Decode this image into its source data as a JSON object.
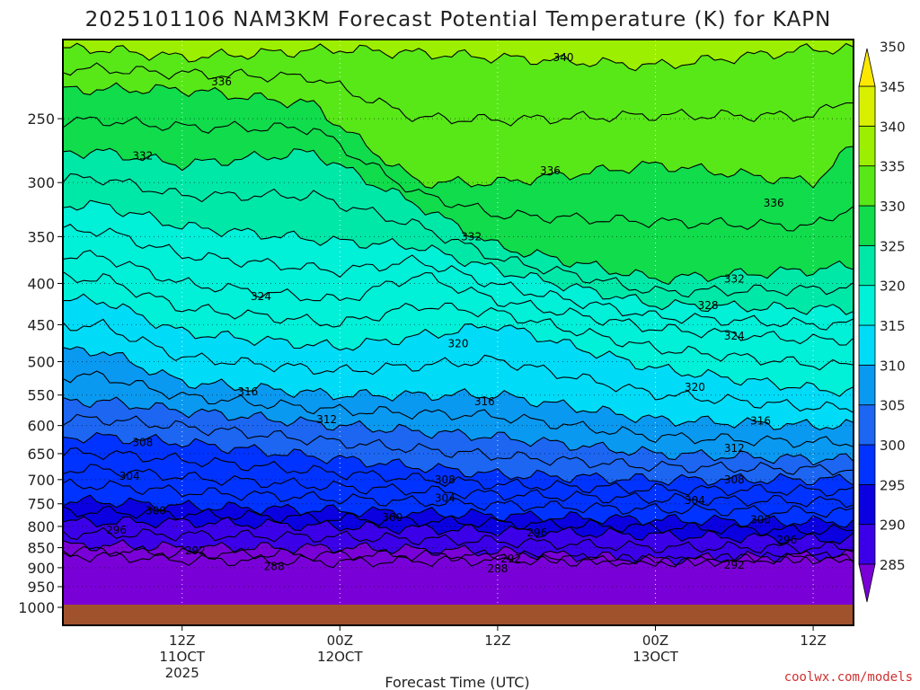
{
  "chart_data": {
    "type": "heatmap",
    "title": "2025101106 NAM3KM Forecast Potential Temperature (K) for KAPN",
    "xlabel": "Forecast Time (UTC)",
    "ylabel": "",
    "x_range_hours": [
      -3,
      57
    ],
    "x_ticks": [
      {
        "hour": 6,
        "lines": [
          "12Z",
          "11OCT",
          "2025"
        ]
      },
      {
        "hour": 18,
        "lines": [
          "00Z",
          "12OCT"
        ]
      },
      {
        "hour": 30,
        "lines": [
          "12Z"
        ]
      },
      {
        "hour": 42,
        "lines": [
          "00Z",
          "13OCT"
        ]
      },
      {
        "hour": 54,
        "lines": [
          "12Z"
        ]
      }
    ],
    "y_scale": "log-pressure",
    "y_range_hpa": [
      1000,
      200
    ],
    "y_ticks": [
      250,
      300,
      350,
      400,
      450,
      500,
      550,
      600,
      650,
      700,
      750,
      800,
      850,
      900,
      950,
      1000
    ],
    "colorbar": {
      "levels": [
        285,
        290,
        295,
        300,
        305,
        310,
        315,
        320,
        325,
        330,
        335,
        340,
        345,
        350
      ],
      "colors": [
        "#7a00d8",
        "#3b00e8",
        "#0a00e0",
        "#0033ff",
        "#1c66f2",
        "#0a99f0",
        "#00dcf8",
        "#00f0d8",
        "#00e8a8",
        "#10dc4c",
        "#58e818",
        "#9cef00",
        "#d8f000",
        "#ffe800"
      ]
    },
    "contour_interval_K": 2,
    "contours": [
      {
        "theta": 288,
        "profile": [
          [
            0,
            870
          ],
          [
            6,
            880
          ],
          [
            18,
            885
          ],
          [
            30,
            880
          ],
          [
            42,
            885
          ],
          [
            54,
            875
          ],
          [
            57,
            880
          ]
        ]
      },
      {
        "theta": 292,
        "profile": [
          [
            0,
            845
          ],
          [
            6,
            850
          ],
          [
            18,
            850
          ],
          [
            30,
            860
          ],
          [
            42,
            880
          ],
          [
            54,
            870
          ],
          [
            57,
            870
          ]
        ]
      },
      {
        "theta": 296,
        "profile": [
          [
            0,
            790
          ],
          [
            6,
            790
          ],
          [
            18,
            800
          ],
          [
            30,
            810
          ],
          [
            42,
            820
          ],
          [
            54,
            830
          ],
          [
            57,
            830
          ]
        ]
      },
      {
        "theta": 300,
        "profile": [
          [
            0,
            745
          ],
          [
            6,
            755
          ],
          [
            18,
            765
          ],
          [
            30,
            775
          ],
          [
            42,
            785
          ],
          [
            54,
            790
          ],
          [
            57,
            790
          ]
        ]
      },
      {
        "theta": 304,
        "profile": [
          [
            0,
            680
          ],
          [
            6,
            695
          ],
          [
            18,
            715
          ],
          [
            30,
            730
          ],
          [
            42,
            740
          ],
          [
            54,
            745
          ],
          [
            57,
            745
          ]
        ]
      },
      {
        "theta": 308,
        "profile": [
          [
            0,
            620
          ],
          [
            6,
            630
          ],
          [
            18,
            660
          ],
          [
            30,
            690
          ],
          [
            42,
            700
          ],
          [
            54,
            700
          ],
          [
            57,
            700
          ]
        ]
      },
      {
        "theta": 312,
        "profile": [
          [
            0,
            560
          ],
          [
            6,
            575
          ],
          [
            18,
            600
          ],
          [
            30,
            620
          ],
          [
            42,
            650
          ],
          [
            54,
            660
          ],
          [
            57,
            660
          ]
        ]
      },
      {
        "theta": 316,
        "profile": [
          [
            0,
            485
          ],
          [
            6,
            530
          ],
          [
            18,
            550
          ],
          [
            30,
            550
          ],
          [
            42,
            590
          ],
          [
            54,
            600
          ],
          [
            57,
            600
          ]
        ]
      },
      {
        "theta": 320,
        "profile": [
          [
            0,
            420
          ],
          [
            6,
            460
          ],
          [
            18,
            480
          ],
          [
            30,
            450
          ],
          [
            42,
            510
          ],
          [
            54,
            540
          ],
          [
            57,
            545
          ]
        ]
      },
      {
        "theta": 324,
        "profile": [
          [
            0,
            370
          ],
          [
            6,
            400
          ],
          [
            18,
            420
          ],
          [
            24,
            390
          ],
          [
            30,
            420
          ],
          [
            42,
            455
          ],
          [
            54,
            470
          ],
          [
            57,
            470
          ]
        ]
      },
      {
        "theta": 328,
        "profile": [
          [
            0,
            320
          ],
          [
            6,
            340
          ],
          [
            18,
            355
          ],
          [
            24,
            360
          ],
          [
            30,
            385
          ],
          [
            42,
            425
          ],
          [
            54,
            430
          ],
          [
            57,
            430
          ]
        ]
      },
      {
        "theta": 332,
        "profile": [
          [
            0,
            275
          ],
          [
            6,
            285
          ],
          [
            16,
            275
          ],
          [
            24,
            320
          ],
          [
            30,
            360
          ],
          [
            42,
            395
          ],
          [
            54,
            385
          ],
          [
            57,
            380
          ]
        ]
      },
      {
        "theta": 336,
        "profile": [
          [
            0,
            230
          ],
          [
            6,
            230
          ],
          [
            16,
            240
          ],
          [
            24,
            300
          ],
          [
            30,
            300
          ],
          [
            42,
            285
          ],
          [
            54,
            300
          ],
          [
            57,
            270
          ]
        ]
      },
      {
        "theta": 340,
        "profile": [
          [
            0,
            205
          ],
          [
            6,
            210
          ],
          [
            18,
            205
          ],
          [
            30,
            210
          ],
          [
            42,
            215
          ],
          [
            54,
            205
          ],
          [
            57,
            205
          ]
        ]
      }
    ],
    "contour_labels": [
      {
        "text": "336",
        "hour": 9,
        "hpa": 225
      },
      {
        "text": "332",
        "hour": 3,
        "hpa": 278
      },
      {
        "text": "324",
        "hour": 12,
        "hpa": 415
      },
      {
        "text": "316",
        "hour": 11,
        "hpa": 545
      },
      {
        "text": "308",
        "hour": 3,
        "hpa": 630
      },
      {
        "text": "304",
        "hour": 2,
        "hpa": 693
      },
      {
        "text": "300",
        "hour": 4,
        "hpa": 765
      },
      {
        "text": "296",
        "hour": 1,
        "hpa": 808
      },
      {
        "text": "292",
        "hour": 7,
        "hpa": 858
      },
      {
        "text": "288",
        "hour": 13,
        "hpa": 897
      },
      {
        "text": "312",
        "hour": 17,
        "hpa": 590
      },
      {
        "text": "340",
        "hour": 35,
        "hpa": 210
      },
      {
        "text": "336",
        "hour": 34,
        "hpa": 290
      },
      {
        "text": "332",
        "hour": 28,
        "hpa": 350
      },
      {
        "text": "320",
        "hour": 27,
        "hpa": 475
      },
      {
        "text": "316",
        "hour": 29,
        "hpa": 560
      },
      {
        "text": "308",
        "hour": 26,
        "hpa": 700
      },
      {
        "text": "304",
        "hour": 26,
        "hpa": 738
      },
      {
        "text": "300",
        "hour": 22,
        "hpa": 780
      },
      {
        "text": "296",
        "hour": 33,
        "hpa": 815
      },
      {
        "text": "292",
        "hour": 31,
        "hpa": 878
      },
      {
        "text": "288",
        "hour": 30,
        "hpa": 902
      },
      {
        "text": "336",
        "hour": 51,
        "hpa": 318
      },
      {
        "text": "332",
        "hour": 48,
        "hpa": 395
      },
      {
        "text": "328",
        "hour": 46,
        "hpa": 426
      },
      {
        "text": "324",
        "hour": 48,
        "hpa": 465
      },
      {
        "text": "320",
        "hour": 45,
        "hpa": 538
      },
      {
        "text": "316",
        "hour": 50,
        "hpa": 592
      },
      {
        "text": "312",
        "hour": 48,
        "hpa": 640
      },
      {
        "text": "308",
        "hour": 48,
        "hpa": 700
      },
      {
        "text": "304",
        "hour": 45,
        "hpa": 743
      },
      {
        "text": "300",
        "hour": 50,
        "hpa": 785
      },
      {
        "text": "296",
        "hour": 52,
        "hpa": 832
      },
      {
        "text": "292",
        "hour": 48,
        "hpa": 893
      }
    ],
    "grid": true,
    "ground_color": "#a0522d"
  },
  "credit": "coolwx.com/models"
}
